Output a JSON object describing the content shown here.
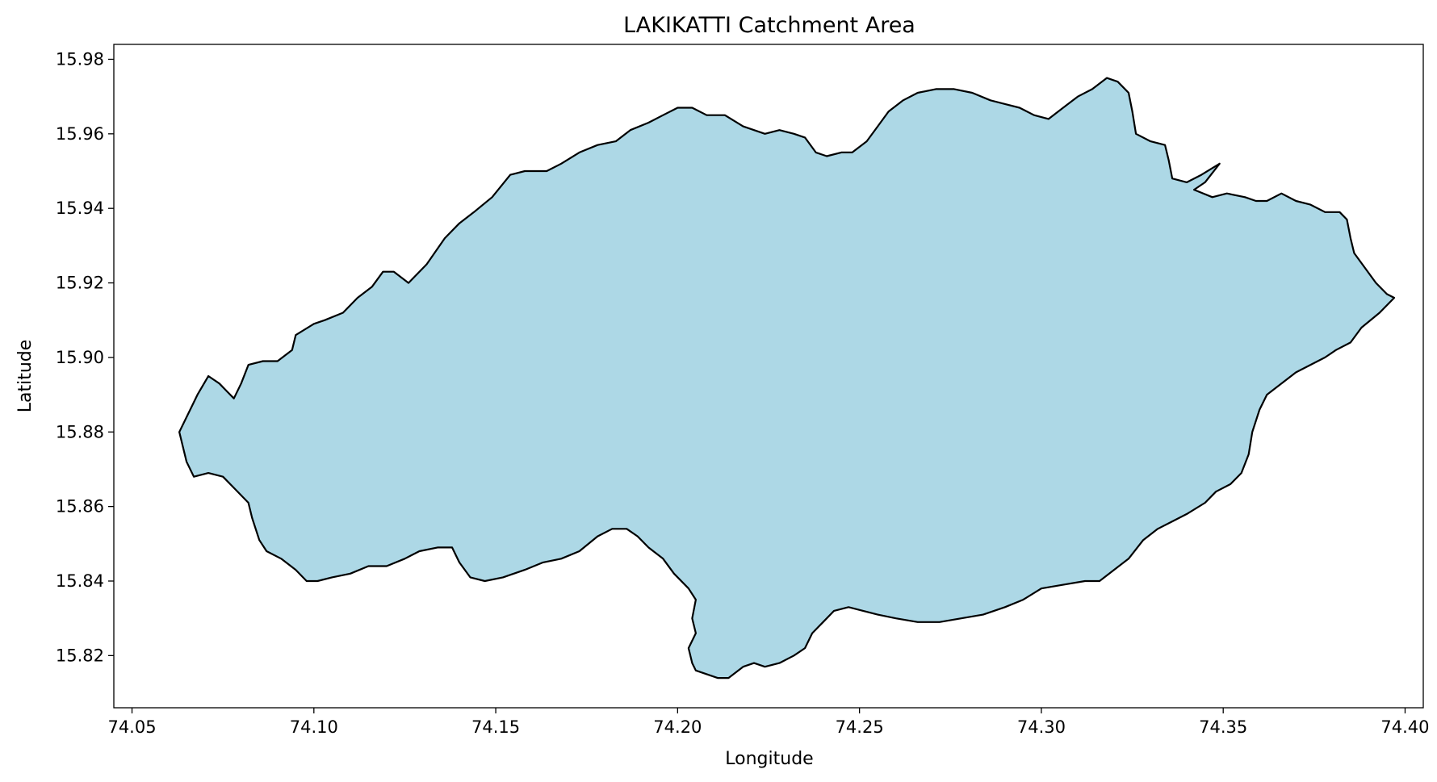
{
  "title": "LAKIKATTI Catchment Area",
  "xlabel": "Longitude",
  "ylabel": "Latitude",
  "colors": {
    "fill": "#add8e6",
    "edge": "#000000",
    "background": "#ffffff"
  },
  "chart_data": {
    "type": "area",
    "xlim": [
      74.045,
      74.405
    ],
    "ylim": [
      15.806,
      15.984
    ],
    "xticks": [
      "74.05",
      "74.10",
      "74.15",
      "74.20",
      "74.25",
      "74.30",
      "74.35",
      "74.40"
    ],
    "yticks": [
      "15.82",
      "15.84",
      "15.86",
      "15.88",
      "15.90",
      "15.92",
      "15.94",
      "15.96",
      "15.98"
    ],
    "grid": false,
    "boundary": [
      [
        74.063,
        15.88
      ],
      [
        74.066,
        15.886
      ],
      [
        74.068,
        15.89
      ],
      [
        74.071,
        15.895
      ],
      [
        74.074,
        15.893
      ],
      [
        74.076,
        15.891
      ],
      [
        74.078,
        15.889
      ],
      [
        74.08,
        15.893
      ],
      [
        74.082,
        15.898
      ],
      [
        74.086,
        15.899
      ],
      [
        74.09,
        15.899
      ],
      [
        74.094,
        15.902
      ],
      [
        74.095,
        15.906
      ],
      [
        74.1,
        15.909
      ],
      [
        74.103,
        15.91
      ],
      [
        74.108,
        15.912
      ],
      [
        74.112,
        15.916
      ],
      [
        74.116,
        15.919
      ],
      [
        74.119,
        15.923
      ],
      [
        74.122,
        15.923
      ],
      [
        74.126,
        15.92
      ],
      [
        74.131,
        15.925
      ],
      [
        74.136,
        15.932
      ],
      [
        74.14,
        15.936
      ],
      [
        74.144,
        15.939
      ],
      [
        74.149,
        15.943
      ],
      [
        74.154,
        15.949
      ],
      [
        74.158,
        15.95
      ],
      [
        74.164,
        15.95
      ],
      [
        74.168,
        15.952
      ],
      [
        74.173,
        15.955
      ],
      [
        74.178,
        15.957
      ],
      [
        74.183,
        15.958
      ],
      [
        74.187,
        15.961
      ],
      [
        74.192,
        15.963
      ],
      [
        74.196,
        15.965
      ],
      [
        74.2,
        15.967
      ],
      [
        74.204,
        15.967
      ],
      [
        74.208,
        15.965
      ],
      [
        74.213,
        15.965
      ],
      [
        74.218,
        15.962
      ],
      [
        74.224,
        15.96
      ],
      [
        74.228,
        15.961
      ],
      [
        74.232,
        15.96
      ],
      [
        74.235,
        15.959
      ],
      [
        74.238,
        15.955
      ],
      [
        74.241,
        15.954
      ],
      [
        74.245,
        15.955
      ],
      [
        74.248,
        15.955
      ],
      [
        74.252,
        15.958
      ],
      [
        74.255,
        15.962
      ],
      [
        74.258,
        15.966
      ],
      [
        74.262,
        15.969
      ],
      [
        74.266,
        15.971
      ],
      [
        74.271,
        15.972
      ],
      [
        74.276,
        15.972
      ],
      [
        74.281,
        15.971
      ],
      [
        74.286,
        15.969
      ],
      [
        74.29,
        15.968
      ],
      [
        74.294,
        15.967
      ],
      [
        74.298,
        15.965
      ],
      [
        74.302,
        15.964
      ],
      [
        74.306,
        15.967
      ],
      [
        74.31,
        15.97
      ],
      [
        74.314,
        15.972
      ],
      [
        74.318,
        15.975
      ],
      [
        74.321,
        15.974
      ],
      [
        74.324,
        15.971
      ],
      [
        74.325,
        15.966
      ],
      [
        74.326,
        15.96
      ],
      [
        74.33,
        15.958
      ],
      [
        74.334,
        15.957
      ],
      [
        74.335,
        15.953
      ],
      [
        74.336,
        15.948
      ],
      [
        74.34,
        15.947
      ],
      [
        74.344,
        15.949
      ],
      [
        74.349,
        15.952
      ],
      [
        74.345,
        15.947
      ],
      [
        74.342,
        15.945
      ],
      [
        74.347,
        15.943
      ],
      [
        74.351,
        15.944
      ],
      [
        74.356,
        15.943
      ],
      [
        74.359,
        15.942
      ],
      [
        74.362,
        15.942
      ],
      [
        74.366,
        15.944
      ],
      [
        74.37,
        15.942
      ],
      [
        74.374,
        15.941
      ],
      [
        74.378,
        15.939
      ],
      [
        74.382,
        15.939
      ],
      [
        74.384,
        15.937
      ],
      [
        74.385,
        15.932
      ],
      [
        74.386,
        15.928
      ],
      [
        74.389,
        15.924
      ],
      [
        74.392,
        15.92
      ],
      [
        74.395,
        15.917
      ],
      [
        74.397,
        15.916
      ],
      [
        74.393,
        15.912
      ],
      [
        74.388,
        15.908
      ],
      [
        74.385,
        15.904
      ],
      [
        74.381,
        15.902
      ],
      [
        74.378,
        15.9
      ],
      [
        74.374,
        15.898
      ],
      [
        74.37,
        15.896
      ],
      [
        74.366,
        15.893
      ],
      [
        74.362,
        15.89
      ],
      [
        74.36,
        15.886
      ],
      [
        74.358,
        15.88
      ],
      [
        74.357,
        15.874
      ],
      [
        74.355,
        15.869
      ],
      [
        74.352,
        15.866
      ],
      [
        74.348,
        15.864
      ],
      [
        74.345,
        15.861
      ],
      [
        74.34,
        15.858
      ],
      [
        74.336,
        15.856
      ],
      [
        74.332,
        15.854
      ],
      [
        74.328,
        15.851
      ],
      [
        74.324,
        15.846
      ],
      [
        74.32,
        15.843
      ],
      [
        74.316,
        15.84
      ],
      [
        74.312,
        15.84
      ],
      [
        74.306,
        15.839
      ],
      [
        74.3,
        15.838
      ],
      [
        74.295,
        15.835
      ],
      [
        74.29,
        15.833
      ],
      [
        74.284,
        15.831
      ],
      [
        74.278,
        15.83
      ],
      [
        74.272,
        15.829
      ],
      [
        74.266,
        15.829
      ],
      [
        74.26,
        15.83
      ],
      [
        74.255,
        15.831
      ],
      [
        74.251,
        15.832
      ],
      [
        74.247,
        15.833
      ],
      [
        74.243,
        15.832
      ],
      [
        74.24,
        15.829
      ],
      [
        74.237,
        15.826
      ],
      [
        74.235,
        15.822
      ],
      [
        74.232,
        15.82
      ],
      [
        74.228,
        15.818
      ],
      [
        74.224,
        15.817
      ],
      [
        74.221,
        15.818
      ],
      [
        74.218,
        15.817
      ],
      [
        74.214,
        15.814
      ],
      [
        74.211,
        15.814
      ],
      [
        74.208,
        15.815
      ],
      [
        74.205,
        15.816
      ],
      [
        74.204,
        15.818
      ],
      [
        74.203,
        15.822
      ],
      [
        74.205,
        15.826
      ],
      [
        74.204,
        15.83
      ],
      [
        74.205,
        15.835
      ],
      [
        74.203,
        15.838
      ],
      [
        74.199,
        15.842
      ],
      [
        74.196,
        15.846
      ],
      [
        74.192,
        15.849
      ],
      [
        74.189,
        15.852
      ],
      [
        74.186,
        15.854
      ],
      [
        74.182,
        15.854
      ],
      [
        74.178,
        15.852
      ],
      [
        74.173,
        15.848
      ],
      [
        74.168,
        15.846
      ],
      [
        74.163,
        15.845
      ],
      [
        74.158,
        15.843
      ],
      [
        74.152,
        15.841
      ],
      [
        74.147,
        15.84
      ],
      [
        74.143,
        15.841
      ],
      [
        74.14,
        15.845
      ],
      [
        74.138,
        15.849
      ],
      [
        74.134,
        15.849
      ],
      [
        74.129,
        15.848
      ],
      [
        74.125,
        15.846
      ],
      [
        74.12,
        15.844
      ],
      [
        74.115,
        15.844
      ],
      [
        74.11,
        15.842
      ],
      [
        74.105,
        15.841
      ],
      [
        74.101,
        15.84
      ],
      [
        74.098,
        15.84
      ],
      [
        74.095,
        15.843
      ],
      [
        74.091,
        15.846
      ],
      [
        74.087,
        15.848
      ],
      [
        74.085,
        15.851
      ],
      [
        74.083,
        15.857
      ],
      [
        74.082,
        15.861
      ],
      [
        74.078,
        15.865
      ],
      [
        74.075,
        15.868
      ],
      [
        74.071,
        15.869
      ],
      [
        74.067,
        15.868
      ],
      [
        74.065,
        15.872
      ],
      [
        74.064,
        15.876
      ],
      [
        74.063,
        15.88
      ]
    ]
  }
}
